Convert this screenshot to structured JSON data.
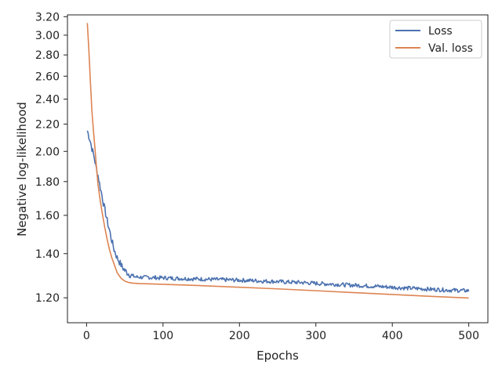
{
  "chart_data": {
    "type": "line",
    "title": "",
    "xlabel": "Epochs",
    "ylabel": "Negative log-likelihood",
    "y_scale": "log",
    "xlim": [
      -25,
      525
    ],
    "ylim": [
      1.1,
      3.22
    ],
    "xticks": [
      0,
      100,
      200,
      300,
      400,
      500
    ],
    "yticks": [
      1.2,
      1.4,
      1.6,
      1.8,
      2.0,
      2.2,
      2.4,
      2.6,
      2.8,
      3.0,
      3.2
    ],
    "ytick_labels": [
      "1.20",
      "1.40",
      "1.60",
      "1.80",
      "2.00",
      "2.20",
      "2.40",
      "2.60",
      "2.80",
      "3.00",
      "3.20"
    ],
    "grid": false,
    "legend_position": "top-right",
    "series": [
      {
        "name": "Loss",
        "color": "#4c72b0",
        "x": [
          1,
          3,
          5,
          7,
          10,
          12,
          15,
          18,
          20,
          22,
          24,
          26,
          28,
          30,
          32,
          34,
          36,
          38,
          40,
          43,
          46,
          50,
          55,
          60,
          65,
          70,
          75,
          80,
          85,
          90,
          95,
          100,
          110,
          120,
          130,
          140,
          150,
          160,
          170,
          180,
          190,
          200,
          210,
          220,
          230,
          240,
          250,
          260,
          270,
          280,
          290,
          300,
          310,
          320,
          330,
          340,
          350,
          360,
          370,
          380,
          390,
          400,
          410,
          420,
          430,
          440,
          450,
          460,
          470,
          480,
          490,
          500
        ],
        "values": [
          2.15,
          2.11,
          2.07,
          2.02,
          1.96,
          1.9,
          1.84,
          1.76,
          1.72,
          1.67,
          1.63,
          1.59,
          1.55,
          1.52,
          1.48,
          1.45,
          1.42,
          1.4,
          1.38,
          1.36,
          1.34,
          1.32,
          1.305,
          1.295,
          1.29,
          1.29,
          1.288,
          1.29,
          1.287,
          1.288,
          1.286,
          1.287,
          1.285,
          1.284,
          1.283,
          1.282,
          1.281,
          1.28,
          1.279,
          1.278,
          1.277,
          1.276,
          1.275,
          1.274,
          1.272,
          1.271,
          1.27,
          1.268,
          1.267,
          1.266,
          1.264,
          1.262,
          1.26,
          1.259,
          1.257,
          1.255,
          1.254,
          1.252,
          1.25,
          1.249,
          1.247,
          1.245,
          1.243,
          1.241,
          1.24,
          1.238,
          1.236,
          1.235,
          1.233,
          1.232,
          1.231,
          1.23
        ]
      },
      {
        "name": "Val. loss",
        "color": "#dd8452",
        "x": [
          1,
          3,
          5,
          7,
          9,
          11,
          13,
          15,
          18,
          21,
          24,
          27,
          30,
          33,
          36,
          40,
          45,
          50,
          55,
          60,
          70,
          80,
          100,
          150,
          200,
          250,
          300,
          350,
          400,
          450,
          500
        ],
        "values": [
          3.13,
          2.85,
          2.55,
          2.3,
          2.15,
          2.02,
          1.89,
          1.78,
          1.68,
          1.6,
          1.53,
          1.47,
          1.42,
          1.38,
          1.35,
          1.31,
          1.285,
          1.272,
          1.266,
          1.263,
          1.261,
          1.26,
          1.258,
          1.252,
          1.245,
          1.238,
          1.23,
          1.222,
          1.214,
          1.206,
          1.199
        ]
      }
    ]
  }
}
